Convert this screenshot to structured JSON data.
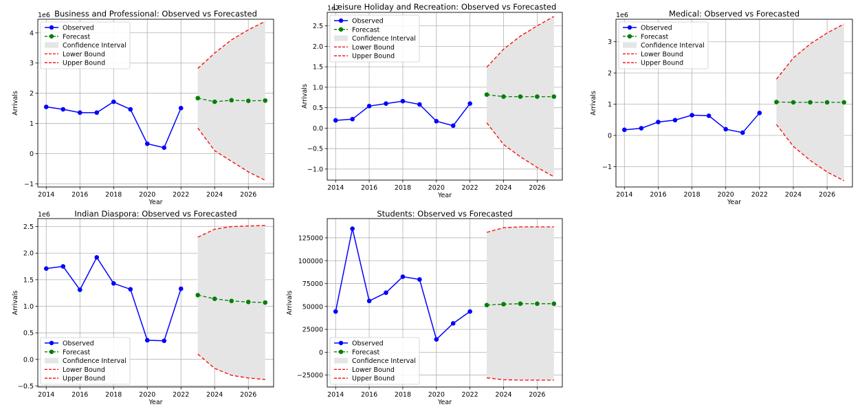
{
  "colors": {
    "observed": "#0000ff",
    "forecast": "#008000",
    "bound": "#ff0000",
    "ci_fill": "#e5e5e5",
    "grid": "#b0b0b0"
  },
  "chart_data": [
    {
      "type": "line",
      "title": "Business and Professional: Observed vs Forecasted",
      "xlabel": "Year",
      "ylabel": "Arrivals",
      "scale_label": "1e6",
      "scale": 1000000,
      "xlim": [
        2013.5,
        2027.5
      ],
      "ylim": [
        -1.1,
        4.45
      ],
      "xticks": [
        2014,
        2016,
        2018,
        2020,
        2022,
        2024,
        2026
      ],
      "xtick_labels": [
        "2014",
        "2016",
        "2018",
        "2020",
        "2022",
        "2024",
        "2026"
      ],
      "yticks": [
        -1,
        0,
        1,
        2,
        3,
        4
      ],
      "ytick_labels": [
        "−1",
        "0",
        "1",
        "2",
        "3",
        "4"
      ],
      "legend_position": "upper-left",
      "legend": [
        "Observed",
        "Forecast",
        "Confidence Interval",
        "Lower Bound",
        "Upper Bound"
      ],
      "observed": {
        "x": [
          2014,
          2015,
          2016,
          2017,
          2018,
          2019,
          2020,
          2021,
          2022
        ],
        "y": [
          1.55,
          1.47,
          1.36,
          1.36,
          1.72,
          1.47,
          0.33,
          0.2,
          1.51
        ]
      },
      "forecast": {
        "x": [
          2023,
          2024,
          2025,
          2026,
          2027
        ],
        "y": [
          1.84,
          1.72,
          1.77,
          1.75,
          1.76
        ]
      },
      "lower": {
        "x": [
          2023,
          2024,
          2025,
          2026,
          2027
        ],
        "y": [
          0.85,
          0.1,
          -0.25,
          -0.6,
          -0.88
        ]
      },
      "upper": {
        "x": [
          2023,
          2024,
          2025,
          2026,
          2027
        ],
        "y": [
          2.82,
          3.33,
          3.77,
          4.1,
          4.38
        ]
      }
    },
    {
      "type": "line",
      "title": "Leisure Holiday and Recreation: Observed vs Forecasted",
      "xlabel": "Year",
      "ylabel": "Arrivals",
      "scale_label": "1e7",
      "scale": 10000000,
      "xlim": [
        2013.5,
        2027.5
      ],
      "ylim": [
        -1.27,
        2.83
      ],
      "xticks": [
        2014,
        2016,
        2018,
        2020,
        2022,
        2024,
        2026
      ],
      "xtick_labels": [
        "2014",
        "2016",
        "2018",
        "2020",
        "2022",
        "2024",
        "2026"
      ],
      "yticks": [
        -1.0,
        -0.5,
        0.0,
        0.5,
        1.0,
        1.5,
        2.0,
        2.5
      ],
      "ytick_labels": [
        "−1.0",
        "−0.5",
        "0.0",
        "0.5",
        "1.0",
        "1.5",
        "2.0",
        "2.5"
      ],
      "legend_position": "upper-left",
      "legend": [
        "Observed",
        "Forecast",
        "Confidence Interval",
        "Lower Bound",
        "Upper Bound"
      ],
      "observed": {
        "x": [
          2014,
          2015,
          2016,
          2017,
          2018,
          2019,
          2020,
          2021,
          2022
        ],
        "y": [
          0.19,
          0.22,
          0.54,
          0.6,
          0.66,
          0.58,
          0.17,
          0.06,
          0.6
        ]
      },
      "forecast": {
        "x": [
          2023,
          2024,
          2025,
          2026,
          2027
        ],
        "y": [
          0.82,
          0.77,
          0.77,
          0.77,
          0.77
        ]
      },
      "lower": {
        "x": [
          2023,
          2024,
          2025,
          2026,
          2027
        ],
        "y": [
          0.13,
          -0.4,
          -0.7,
          -0.96,
          -1.19
        ]
      },
      "upper": {
        "x": [
          2023,
          2024,
          2025,
          2026,
          2027
        ],
        "y": [
          1.49,
          1.93,
          2.25,
          2.5,
          2.73
        ]
      }
    },
    {
      "type": "line",
      "title": "Medical: Observed vs Forecasted",
      "xlabel": "Year",
      "ylabel": "Arrivals",
      "scale_label": "1e6",
      "scale": 1000000,
      "xlim": [
        2013.5,
        2027.5
      ],
      "ylim": [
        -1.65,
        3.72
      ],
      "xticks": [
        2014,
        2016,
        2018,
        2020,
        2022,
        2024,
        2026
      ],
      "xtick_labels": [
        "2014",
        "2016",
        "2018",
        "2020",
        "2022",
        "2024",
        "2026"
      ],
      "yticks": [
        -1,
        0,
        1,
        2,
        3
      ],
      "ytick_labels": [
        "−1",
        "0",
        "1",
        "2",
        "3"
      ],
      "legend_position": "upper-left",
      "legend": [
        "Observed",
        "Forecast",
        "Confidence Interval",
        "Lower Bound",
        "Upper Bound"
      ],
      "observed": {
        "x": [
          2014,
          2015,
          2016,
          2017,
          2018,
          2019,
          2020,
          2021,
          2022
        ],
        "y": [
          0.18,
          0.23,
          0.43,
          0.49,
          0.65,
          0.63,
          0.2,
          0.09,
          0.72
        ]
      },
      "forecast": {
        "x": [
          2023,
          2024,
          2025,
          2026,
          2027
        ],
        "y": [
          1.07,
          1.06,
          1.06,
          1.06,
          1.06
        ]
      },
      "lower": {
        "x": [
          2023,
          2024,
          2025,
          2026,
          2027
        ],
        "y": [
          0.35,
          -0.35,
          -0.8,
          -1.17,
          -1.45
        ]
      },
      "upper": {
        "x": [
          2023,
          2024,
          2025,
          2026,
          2027
        ],
        "y": [
          1.8,
          2.48,
          2.93,
          3.28,
          3.57
        ]
      }
    },
    {
      "type": "line",
      "title": "Indian Diaspora: Observed vs Forecasted",
      "xlabel": "Year",
      "ylabel": "Arrivals",
      "scale_label": "1e6",
      "scale": 1000000,
      "xlim": [
        2013.5,
        2027.5
      ],
      "ylim": [
        -0.52,
        2.65
      ],
      "xticks": [
        2014,
        2016,
        2018,
        2020,
        2022,
        2024,
        2026
      ],
      "xtick_labels": [
        "2014",
        "2016",
        "2018",
        "2020",
        "2022",
        "2024",
        "2026"
      ],
      "yticks": [
        -0.5,
        0.0,
        0.5,
        1.0,
        1.5,
        2.0,
        2.5
      ],
      "ytick_labels": [
        "−0.5",
        "0.0",
        "0.5",
        "1.0",
        "1.5",
        "2.0",
        "2.5"
      ],
      "legend_position": "lower-left",
      "legend": [
        "Observed",
        "Forecast",
        "Confidence Interval",
        "Lower Bound",
        "Upper Bound"
      ],
      "observed": {
        "x": [
          2014,
          2015,
          2016,
          2017,
          2018,
          2019,
          2020,
          2021,
          2022
        ],
        "y": [
          1.71,
          1.75,
          1.31,
          1.92,
          1.43,
          1.32,
          0.36,
          0.35,
          1.33
        ]
      },
      "forecast": {
        "x": [
          2023,
          2024,
          2025,
          2026,
          2027
        ],
        "y": [
          1.21,
          1.14,
          1.1,
          1.08,
          1.07
        ]
      },
      "lower": {
        "x": [
          2023,
          2024,
          2025,
          2026,
          2027
        ],
        "y": [
          0.1,
          -0.17,
          -0.3,
          -0.35,
          -0.38
        ]
      },
      "upper": {
        "x": [
          2023,
          2024,
          2025,
          2026,
          2027
        ],
        "y": [
          2.3,
          2.45,
          2.5,
          2.51,
          2.52
        ]
      }
    },
    {
      "type": "line",
      "title": "Students: Observed vs Forecasted",
      "xlabel": "Year",
      "ylabel": "Arrivals",
      "scale_label": "",
      "scale": 1,
      "xlim": [
        2013.5,
        2027.5
      ],
      "ylim": [
        -38000,
        146000
      ],
      "xticks": [
        2014,
        2016,
        2018,
        2020,
        2022,
        2024,
        2026
      ],
      "xtick_labels": [
        "2014",
        "2016",
        "2018",
        "2020",
        "2022",
        "2024",
        "2026"
      ],
      "yticks": [
        -25000,
        0,
        25000,
        50000,
        75000,
        100000,
        125000
      ],
      "ytick_labels": [
        "−25000",
        "0",
        "25000",
        "50000",
        "75000",
        "100000",
        "125000"
      ],
      "legend_position": "lower-left",
      "legend": [
        "Observed",
        "Forecast",
        "Confidence Interval",
        "Lower Bound",
        "Upper Bound"
      ],
      "observed": {
        "x": [
          2014,
          2015,
          2016,
          2017,
          2018,
          2019,
          2020,
          2021,
          2022
        ],
        "y": [
          44500,
          135000,
          56000,
          65000,
          82500,
          79500,
          14000,
          31500,
          44500
        ]
      },
      "forecast": {
        "x": [
          2023,
          2024,
          2025,
          2026,
          2027
        ],
        "y": [
          51500,
          52500,
          53000,
          53000,
          53000
        ]
      },
      "lower": {
        "x": [
          2023,
          2024,
          2025,
          2026,
          2027
        ],
        "y": [
          -28000,
          -30000,
          -30500,
          -30500,
          -30500
        ]
      },
      "upper": {
        "x": [
          2023,
          2024,
          2025,
          2026,
          2027
        ],
        "y": [
          131000,
          136000,
          137000,
          137000,
          137000
        ]
      }
    }
  ]
}
